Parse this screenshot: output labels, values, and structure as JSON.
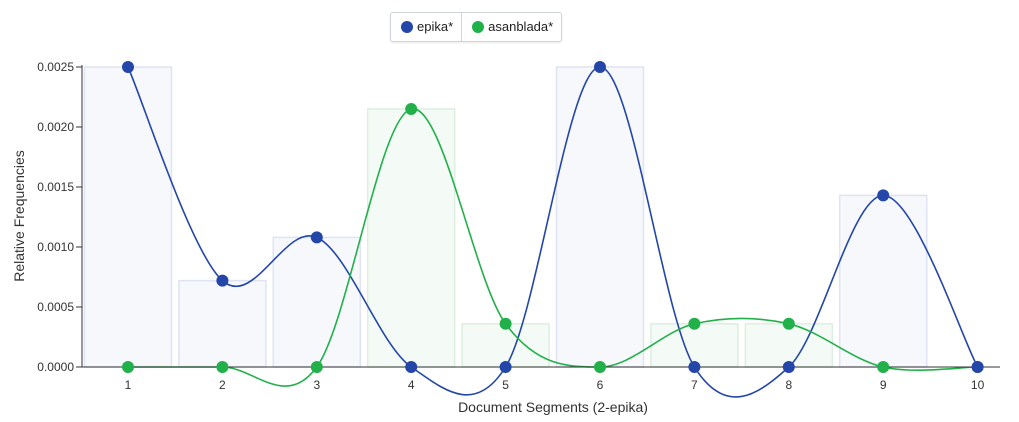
{
  "chart_data": {
    "type": "line",
    "xlabel": "Document Segments (2-epika)",
    "ylabel": "Relative Frequencies",
    "categories": [
      "1",
      "2",
      "3",
      "4",
      "5",
      "6",
      "7",
      "8",
      "9",
      "10"
    ],
    "ylim": [
      0,
      0.0025
    ],
    "yticks": [
      "0.0000",
      "0.0005",
      "0.0010",
      "0.0015",
      "0.0020",
      "0.0025"
    ],
    "grid": false,
    "legend_position": "top-center",
    "series": [
      {
        "name": "epika*",
        "color": "#2446a8",
        "values": [
          0.0025,
          0.00072,
          0.00108,
          0,
          0,
          0.0025,
          0,
          0,
          0.00143,
          0
        ]
      },
      {
        "name": "asanblada*",
        "color": "#22b04b",
        "values": [
          0,
          0,
          0,
          0.00215,
          0.00036,
          0,
          0.00036,
          0.00036,
          0,
          0
        ]
      }
    ],
    "bars": {
      "values": [
        0.0025,
        0.00072,
        0.00108,
        0.00215,
        0.00036,
        0.0025,
        0.00036,
        0.00036,
        0.00143,
        0
      ]
    }
  }
}
